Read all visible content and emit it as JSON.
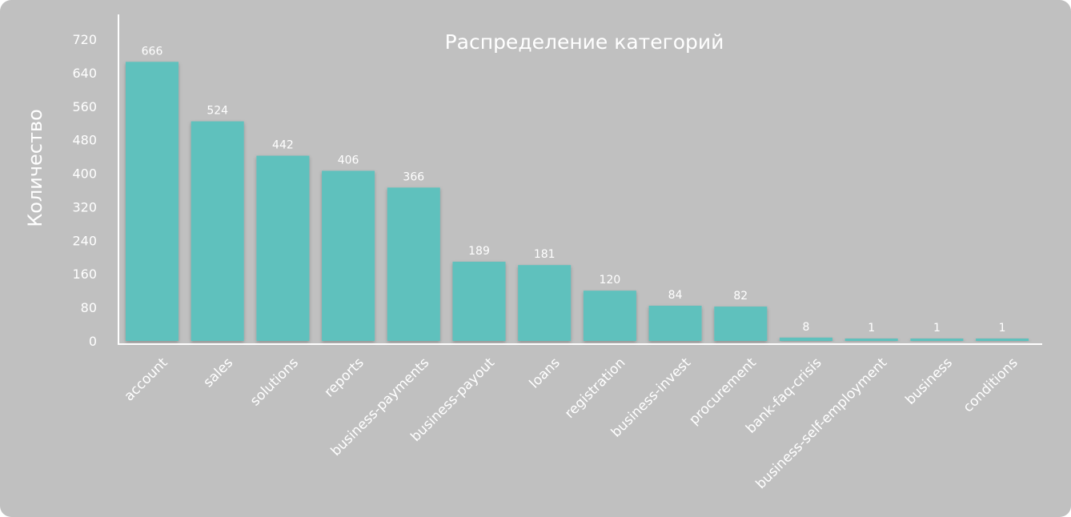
{
  "chart_data": {
    "type": "bar",
    "title": "Распределение категорий",
    "xlabel": "",
    "ylabel": "Количество",
    "categories": [
      "account",
      "sales",
      "solutions",
      "reports",
      "business-payments",
      "business-payout",
      "loans",
      "registration",
      "business-invest",
      "procurement",
      "bank-faq-crisis",
      "business-self-employment",
      "business",
      "conditions"
    ],
    "values": [
      666,
      524,
      442,
      406,
      366,
      189,
      181,
      120,
      84,
      82,
      8,
      1,
      1,
      1
    ],
    "ylim": [
      0,
      720
    ],
    "yticks": [
      0,
      80,
      160,
      240,
      320,
      400,
      480,
      560,
      640,
      720
    ],
    "grid": false,
    "legend": "none",
    "data_labels": true
  },
  "colors": {
    "background": "#c0c0c0",
    "bar": "#5fc1bd",
    "text": "#ffffff",
    "axis": "#ffffff"
  }
}
